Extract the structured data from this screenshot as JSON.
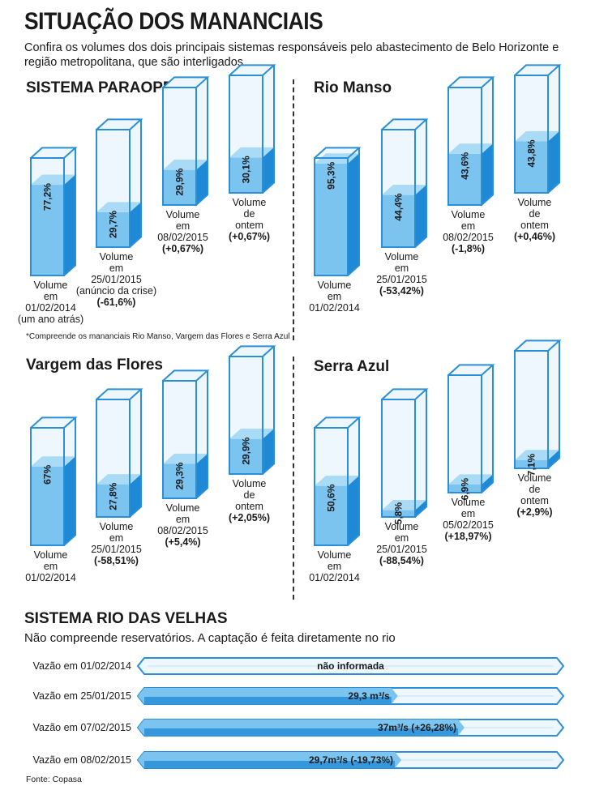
{
  "title": "SITUAÇÃO DOS MANANCIAIS",
  "subtitle": "Confira os volumes dos dois principais sistemas responsáveis pelo abastecimento de Belo Horizonte e região metropolitana, que são interligados",
  "footnote": "*Compreende os mananciais Rio Manso, Vargem das Flores e Serra Azul",
  "source": "Fonte: Copasa",
  "colors": {
    "water_light": "#7cc4f0",
    "water_dark": "#1e8ad6",
    "outline": "#2a8fd8",
    "glass": "#eef7fd"
  },
  "chart_data": [
    {
      "type": "bar",
      "title": "SISTEMA PARAOPEBA*",
      "values": [
        77.2,
        29.7,
        29.9,
        30.1
      ],
      "value_labels": [
        "77,2%",
        "29,7%",
        "29,9%",
        "30,1%"
      ],
      "captions": [
        [
          "Volume",
          "em",
          "01/02/2014",
          "(um ano atrás)"
        ],
        [
          "Volume",
          "em",
          "25/01/2015",
          "(anúncio da crise)",
          "(-61,6%)"
        ],
        [
          "Volume",
          "em",
          "08/02/2015",
          "(+0,67%)"
        ],
        [
          "Volume",
          "de",
          "ontem",
          "(+0,67%)"
        ]
      ],
      "ylim": [
        0,
        100
      ]
    },
    {
      "type": "bar",
      "title": "Rio Manso",
      "values": [
        95.3,
        44.4,
        43.6,
        43.8
      ],
      "value_labels": [
        "95,3%",
        "44,4%",
        "43,6%",
        "43,8%"
      ],
      "captions": [
        [
          "Volume",
          "em",
          "01/02/2014"
        ],
        [
          "Volume",
          "em",
          "25/01/2015",
          "(-53,42%)"
        ],
        [
          "Volume",
          "em",
          "08/02/2015",
          "(-1,8%)"
        ],
        [
          "Volume",
          "de",
          "ontem",
          "(+0,46%)"
        ]
      ],
      "ylim": [
        0,
        100
      ]
    },
    {
      "type": "bar",
      "title": "Vargem das Flores",
      "values": [
        67,
        27.8,
        29.3,
        29.9
      ],
      "value_labels": [
        "67%",
        "27,8%",
        "29,3%",
        "29,9%"
      ],
      "captions": [
        [
          "Volume",
          "em",
          "01/02/2014"
        ],
        [
          "Volume",
          "em",
          "25/01/2015",
          "(-58,51%)"
        ],
        [
          "Volume",
          "em",
          "08/02/2015",
          "(+5,4%)"
        ],
        [
          "Volume",
          "de",
          "ontem",
          "(+2,05%)"
        ]
      ],
      "ylim": [
        0,
        100
      ]
    },
    {
      "type": "bar",
      "title": "Serra Azul",
      "values": [
        50.6,
        5.8,
        6.9,
        7.1
      ],
      "value_labels": [
        "50,6%",
        "5,8%",
        "6,9%",
        "7,1%"
      ],
      "captions": [
        [
          "Volume",
          "em",
          "01/02/2014"
        ],
        [
          "Volume",
          "em",
          "25/01/2015",
          "(-88,54%)"
        ],
        [
          "Volume",
          "em",
          "05/02/2015",
          "(+18,97%)"
        ],
        [
          "Volume",
          "de",
          "ontem",
          "(+2,9%)"
        ]
      ],
      "ylim": [
        0,
        100
      ]
    },
    {
      "type": "bar",
      "title": "SISTEMA RIO DAS VELHAS",
      "subtitle": "Não compreende reservatórios. A captação é feita diretamente no rio",
      "categories": [
        "Vazão em 01/02/2014",
        "Vazão em 25/01/2015",
        "Vazão em 07/02/2015",
        "Vazão em 08/02/2015"
      ],
      "values": [
        null,
        29.3,
        37,
        29.7
      ],
      "value_labels": [
        "não informada",
        "29,3 m³/s",
        "37m³/s (+26,28%)",
        "29,7m³/s (-19,73%)"
      ]
    }
  ]
}
